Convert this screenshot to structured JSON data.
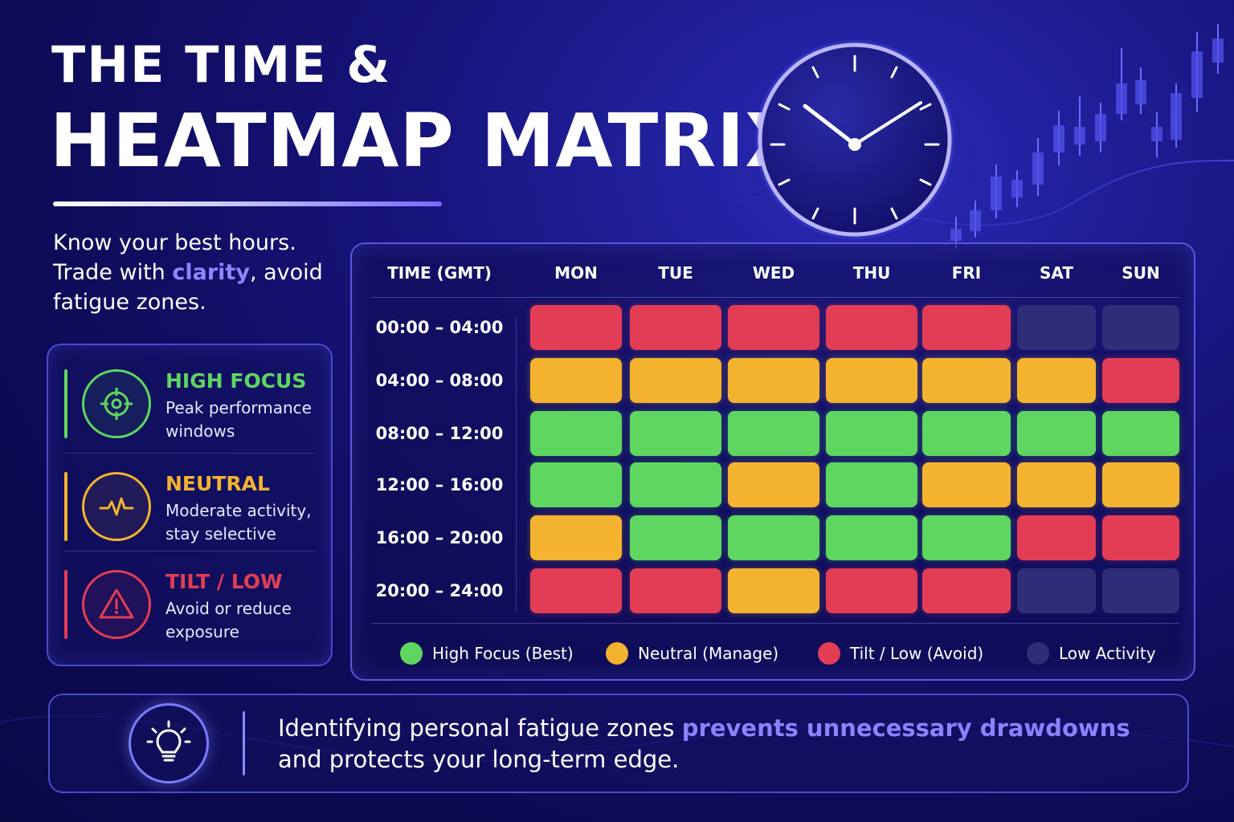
{
  "title": {
    "line1": "THE TIME &",
    "line2": "HEATMAP MATRIX"
  },
  "tagline": {
    "part1": "Know your best hours. Trade with ",
    "highlight": "clarity",
    "part2": ", avoid fatigue zones."
  },
  "legend": [
    {
      "title": "HIGH FOCUS",
      "desc": "Peak performance windows",
      "color": "#5fd65f",
      "icon": "target-icon"
    },
    {
      "title": "NEUTRAL",
      "desc": "Moderate activity, stay selective",
      "color": "#f3b32f",
      "icon": "pulse-icon"
    },
    {
      "title": "TILT / LOW",
      "desc": "Avoid or reduce exposure",
      "color": "#e23d55",
      "icon": "warning-icon"
    }
  ],
  "chart_data": {
    "type": "heatmap",
    "row_header": "TIME (GMT)",
    "columns": [
      "MON",
      "TUE",
      "WED",
      "THU",
      "FRI",
      "SAT",
      "SUN"
    ],
    "rows": [
      "00:00 – 04:00",
      "04:00 – 08:00",
      "08:00 – 12:00",
      "12:00 – 16:00",
      "16:00 – 20:00",
      "20:00 – 24:00"
    ],
    "values": [
      [
        "red",
        "red",
        "red",
        "red",
        "red",
        "dark",
        "dark"
      ],
      [
        "yellow",
        "yellow",
        "yellow",
        "yellow",
        "yellow",
        "yellow",
        "red"
      ],
      [
        "green",
        "green",
        "green",
        "green",
        "green",
        "green",
        "green"
      ],
      [
        "green",
        "green",
        "yellow",
        "green",
        "yellow",
        "yellow",
        "yellow"
      ],
      [
        "yellow",
        "green",
        "green",
        "green",
        "green",
        "red",
        "red"
      ],
      [
        "red",
        "red",
        "yellow",
        "red",
        "red",
        "dark",
        "dark"
      ]
    ],
    "legend": [
      {
        "key": "green",
        "label": "High Focus (Best)",
        "color": "#5fd65f"
      },
      {
        "key": "yellow",
        "label": "Neutral (Manage)",
        "color": "#f3b32f"
      },
      {
        "key": "red",
        "label": "Tilt / Low (Avoid)",
        "color": "#e23d55"
      },
      {
        "key": "dark",
        "label": "Low Activity",
        "color": "#2e2e78"
      }
    ]
  },
  "insight": {
    "part1": "Identifying personal fatigue zones ",
    "highlight": "prevents unnecessary drawdowns",
    "part2": " and protects your long-term edge."
  },
  "colors": {
    "accent": "#8a82ff",
    "background": "#16137a"
  }
}
